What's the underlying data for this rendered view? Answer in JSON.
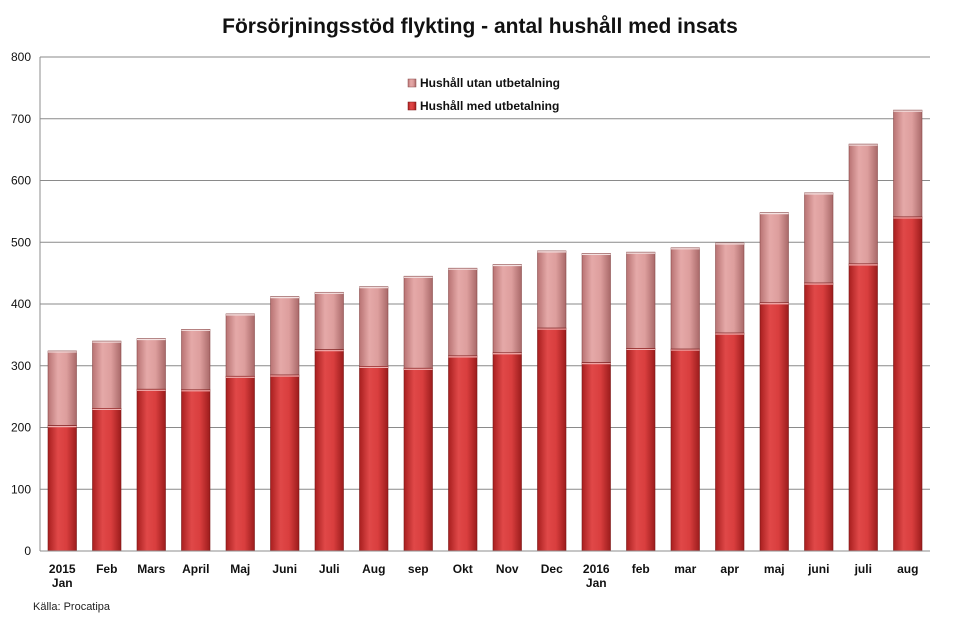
{
  "chart_data": {
    "type": "bar",
    "stacked": true,
    "title": "Försörjningsstöd flykting - antal hushåll med insats",
    "xlabel": "",
    "ylabel": "",
    "ylim": [
      0,
      800
    ],
    "yticks": [
      0,
      100,
      200,
      300,
      400,
      500,
      600,
      700,
      800
    ],
    "grid": true,
    "legend_position": "top-center",
    "categories": [
      "2015 Jan",
      "Feb",
      "Mars",
      "April",
      "Maj",
      "Juni",
      "Juli",
      "Aug",
      "sep",
      "Okt",
      "Nov",
      "Dec",
      "2016 Jan",
      "feb",
      "mar",
      "apr",
      "maj",
      "juni",
      "juli",
      "aug"
    ],
    "category_lines": [
      [
        "2015",
        "Jan"
      ],
      [
        "Feb"
      ],
      [
        "Mars"
      ],
      [
        "April"
      ],
      [
        "Maj"
      ],
      [
        "Juni"
      ],
      [
        "Juli"
      ],
      [
        "Aug"
      ],
      [
        "sep"
      ],
      [
        "Okt"
      ],
      [
        "Nov"
      ],
      [
        "Dec"
      ],
      [
        "2016",
        "Jan"
      ],
      [
        "feb"
      ],
      [
        "mar"
      ],
      [
        "apr"
      ],
      [
        "maj"
      ],
      [
        "juni"
      ],
      [
        "juli"
      ],
      [
        "aug"
      ]
    ],
    "series": [
      {
        "name": "Hushåll med utbetalning",
        "color": "#d23a3a",
        "values": [
          203,
          231,
          262,
          261,
          283,
          285,
          326,
          299,
          296,
          316,
          321,
          361,
          305,
          328,
          327,
          353,
          402,
          434,
          465,
          541
        ]
      },
      {
        "name": "Hushåll utan utbetalning",
        "color": "#d99594",
        "values": [
          121,
          109,
          82,
          98,
          101,
          127,
          93,
          129,
          149,
          142,
          143,
          125,
          177,
          156,
          164,
          146,
          146,
          146,
          194,
          173
        ]
      }
    ],
    "source": "Källa: Procatipa"
  }
}
